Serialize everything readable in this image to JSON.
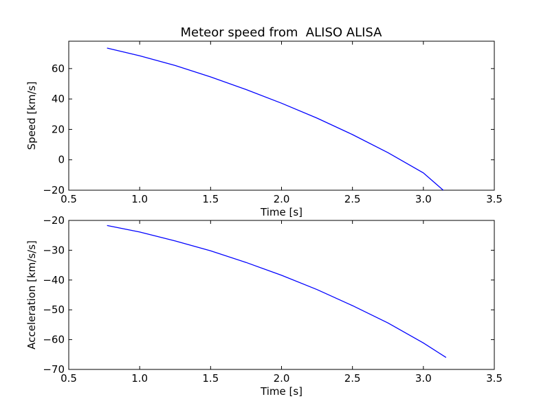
{
  "colors": {
    "background": "#ffffff",
    "axes": "#000000",
    "series": "#0000ff"
  },
  "chart_data": [
    {
      "type": "line",
      "title": "Meteor speed from  ALISO ALISA",
      "xlabel": "Time [s]",
      "ylabel": "Speed [km/s]",
      "xlim": [
        0.5,
        3.5
      ],
      "ylim": [
        -20,
        78
      ],
      "xticks": [
        "0.5",
        "1.0",
        "1.5",
        "2.0",
        "2.5",
        "3.0",
        "3.5"
      ],
      "yticks": [
        "60",
        "40",
        "20",
        "0",
        "−20"
      ],
      "grid": false,
      "series": [
        {
          "x": [
            0.77,
            1.0,
            1.25,
            1.5,
            1.75,
            2.0,
            2.25,
            2.5,
            2.75,
            3.0,
            3.14
          ],
          "y": [
            73.5,
            68.4,
            62.0,
            54.5,
            46.2,
            37.2,
            27.4,
            16.6,
            4.7,
            -8.6,
            -20.0
          ]
        }
      ]
    },
    {
      "type": "line",
      "title": "",
      "xlabel": "Time [s]",
      "ylabel": "Acceleration [km/s/s]",
      "xlim": [
        0.5,
        3.5
      ],
      "ylim": [
        -70,
        -20
      ],
      "xticks": [
        "0.5",
        "1.0",
        "1.5",
        "2.0",
        "2.5",
        "3.0",
        "3.5"
      ],
      "yticks": [
        "−20",
        "−30",
        "−40",
        "−50",
        "−60",
        "−70"
      ],
      "grid": false,
      "series": [
        {
          "x": [
            0.77,
            1.0,
            1.25,
            1.5,
            1.75,
            2.0,
            2.25,
            2.5,
            2.75,
            3.0,
            3.16
          ],
          "y": [
            -21.7,
            -23.9,
            -26.9,
            -30.2,
            -34.1,
            -38.4,
            -43.2,
            -48.6,
            -54.4,
            -61.1,
            -66.0
          ]
        }
      ]
    }
  ]
}
